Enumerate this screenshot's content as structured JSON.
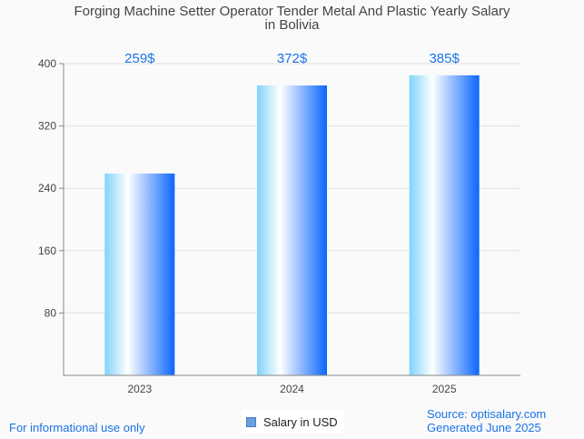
{
  "chart_data": {
    "type": "bar",
    "title": "Forging Machine Setter Operator Tender Metal And Plastic Yearly Salary in Bolivia",
    "title_lines": [
      "Forging Machine Setter Operator Tender Metal And Plastic Yearly Salary",
      "in Bolivia"
    ],
    "categories": [
      "2023",
      "2024",
      "2025"
    ],
    "values": [
      259,
      372,
      385
    ],
    "data_labels": [
      "259$",
      "372$",
      "385$"
    ],
    "ylim": [
      0,
      400
    ],
    "yticks": [
      80,
      160,
      240,
      320,
      400
    ],
    "ytick_labels": [
      "80",
      "160",
      "240",
      "320",
      "400"
    ],
    "xlabel": "",
    "ylabel": "",
    "grid": true,
    "legend": {
      "label": "Salary in USD",
      "placement": "bottom-center"
    },
    "colors": {
      "label": "#1a73e8",
      "grid": "#e0e0e0",
      "axis": "#888888",
      "bar_left": "#7fd3fb",
      "bar_mid": "#ffffff",
      "bar_right": "#0a66ff"
    }
  },
  "footer": {
    "left": "For informational use only",
    "source": "Source: optisalary.com",
    "generated": "Generated June 2025"
  }
}
